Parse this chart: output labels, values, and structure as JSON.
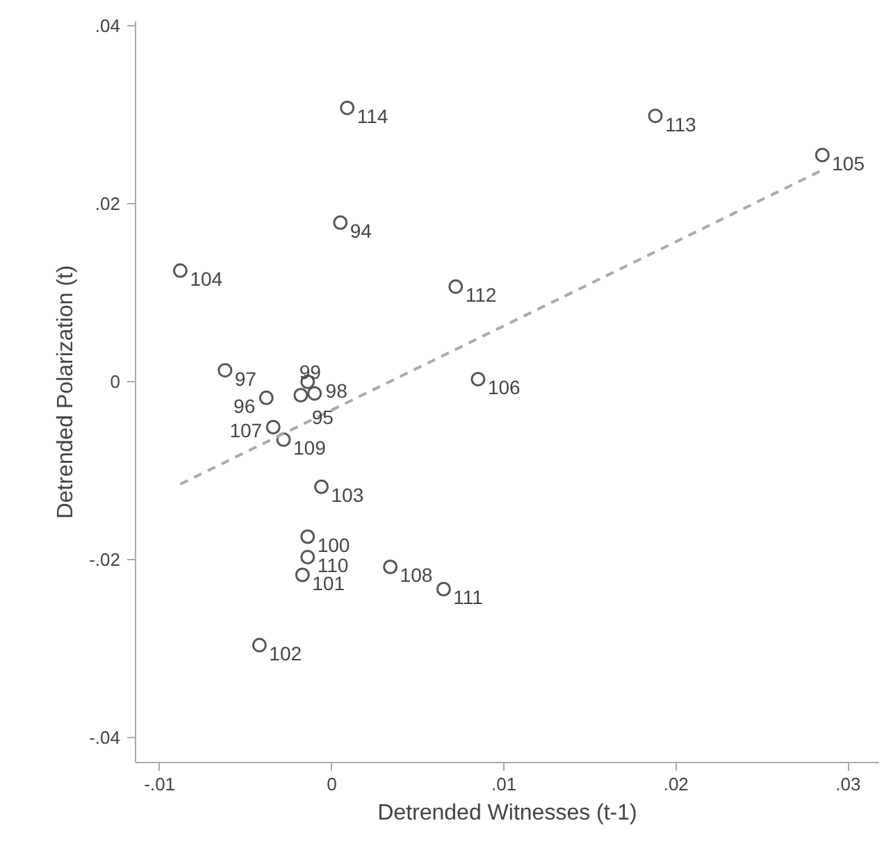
{
  "chart_data": {
    "type": "scatter",
    "xlabel": "Detrended Witnesses (t-1)",
    "ylabel": "Detrended Polarization (t)",
    "xlim": [
      -0.0114,
      0.0318
    ],
    "ylim": [
      -0.0428,
      0.0405
    ],
    "xticks": [
      {
        "value": -0.01,
        "label": "-.01"
      },
      0,
      {
        "value": 0.01,
        "label": ".01"
      },
      {
        "value": 0.02,
        "label": ".02"
      },
      {
        "value": 0.03,
        "label": ".03"
      }
    ],
    "yticks": [
      {
        "value": -0.04,
        "label": "-.04"
      },
      {
        "value": -0.02,
        "label": "-.02"
      },
      0,
      {
        "value": 0.02,
        "label": ".02"
      },
      {
        "value": 0.04,
        "label": ".04"
      }
    ],
    "grid": false,
    "series": [
      {
        "color": "#555555",
        "marker": "circle",
        "x": [
          0.0005,
          -0.0018,
          -0.0038,
          -0.0062,
          -0.001,
          -0.0014,
          -0.0014,
          -0.0017,
          -0.0042,
          -0.0006,
          -0.0088,
          0.0285,
          0.0085,
          -0.0034,
          0.0034,
          -0.0028,
          -0.0014,
          0.0065,
          0.0072,
          0.0188,
          0.0009
        ],
        "values": [
          0.0179,
          -0.0015,
          -0.0018,
          0.0013,
          -0.0013,
          0.0,
          -0.0174,
          -0.0217,
          -0.0296,
          -0.0118,
          0.0125,
          0.0255,
          0.0003,
          -0.0051,
          -0.0208,
          -0.0065,
          -0.0197,
          -0.0233,
          0.0107,
          0.0299,
          0.0308
        ]
      },
      {
        "type": "line",
        "color": "#aaaaaa",
        "line_style": "dashed",
        "x": [
          -0.0088,
          0.0285
        ],
        "values": [
          -0.0115,
          0.0238
        ]
      }
    ],
    "annotations": [
      {
        "text": "94",
        "x": 0.0005,
        "y": 0.0179
      },
      {
        "text": "95",
        "x": -0.0018,
        "y": -0.0015
      },
      {
        "text": "96",
        "x": -0.0038,
        "y": -0.0018
      },
      {
        "text": "97",
        "x": -0.0062,
        "y": 0.0013
      },
      {
        "text": "98",
        "x": -0.001,
        "y": -0.0013
      },
      {
        "text": "99",
        "x": -0.0014,
        "y": 0.0
      },
      {
        "text": "100",
        "x": -0.0014,
        "y": -0.0174
      },
      {
        "text": "101",
        "x": -0.0017,
        "y": -0.0217
      },
      {
        "text": "102",
        "x": -0.0042,
        "y": -0.0296
      },
      {
        "text": "103",
        "x": -0.0006,
        "y": -0.0118
      },
      {
        "text": "104",
        "x": -0.0088,
        "y": 0.0125
      },
      {
        "text": "105",
        "x": 0.0285,
        "y": 0.0255
      },
      {
        "text": "106",
        "x": 0.0085,
        "y": 0.0003
      },
      {
        "text": "107",
        "x": -0.0034,
        "y": -0.0051
      },
      {
        "text": "108",
        "x": 0.0034,
        "y": -0.0208
      },
      {
        "text": "109",
        "x": -0.0028,
        "y": -0.0065
      },
      {
        "text": "110",
        "x": -0.0014,
        "y": -0.0197
      },
      {
        "text": "111",
        "x": 0.0065,
        "y": -0.0233
      },
      {
        "text": "112",
        "x": 0.0072,
        "y": 0.0107
      },
      {
        "text": "113",
        "x": 0.0188,
        "y": 0.0299
      },
      {
        "text": "114",
        "x": 0.0009,
        "y": 0.0308
      }
    ]
  }
}
